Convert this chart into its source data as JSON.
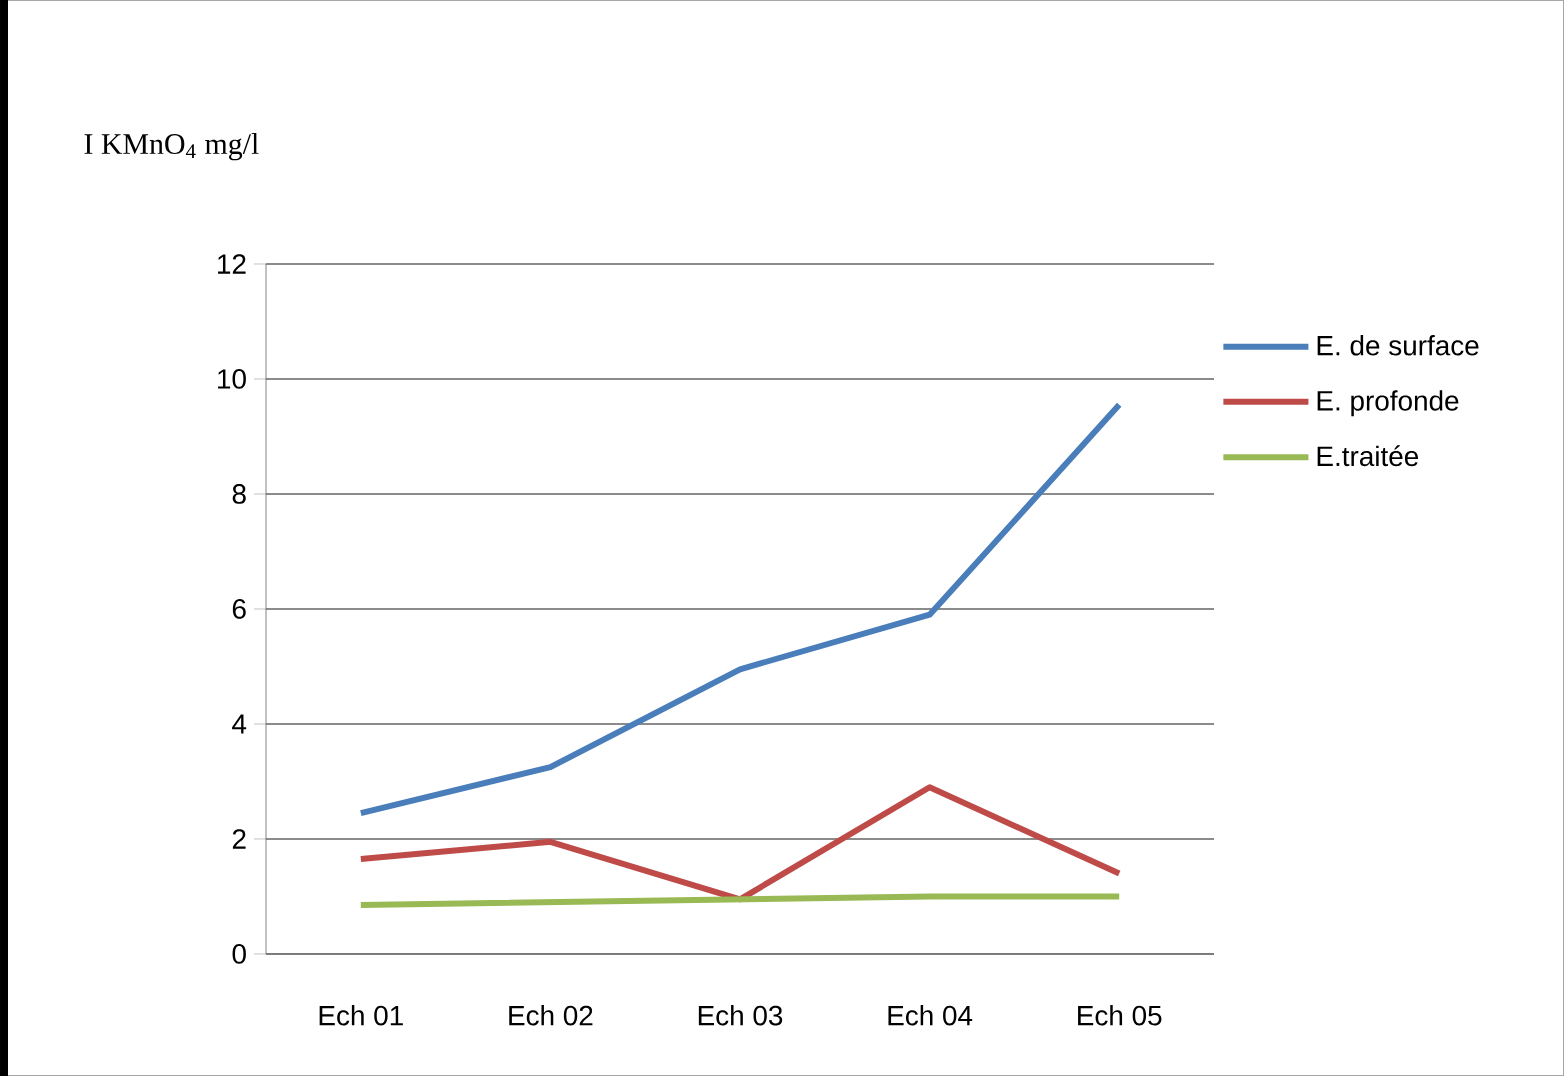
{
  "chart_data": {
    "type": "line",
    "ylabel": "I KMnO$_{4}$ mg/l",
    "categories": [
      "Ech 01",
      "Ech 02",
      "Ech 03",
      "Ech 04",
      "Ech 05"
    ],
    "series": [
      {
        "name": "E. de surface",
        "color": "#4a7ebb",
        "values": [
          2.45,
          3.25,
          4.95,
          5.9,
          9.55
        ]
      },
      {
        "name": "E. profonde",
        "color": "#be4b48",
        "values": [
          1.65,
          1.95,
          0.95,
          2.9,
          1.4
        ]
      },
      {
        "name": "E.traitée",
        "color": "#98b954",
        "values": [
          0.85,
          0.9,
          0.95,
          1.0,
          1.0
        ]
      }
    ],
    "ylim": [
      0,
      12
    ],
    "yticks": [
      0,
      2,
      4,
      6,
      8,
      10,
      12
    ],
    "grid": "y",
    "legend": "right",
    "marker": "none",
    "line_style": "solid"
  }
}
